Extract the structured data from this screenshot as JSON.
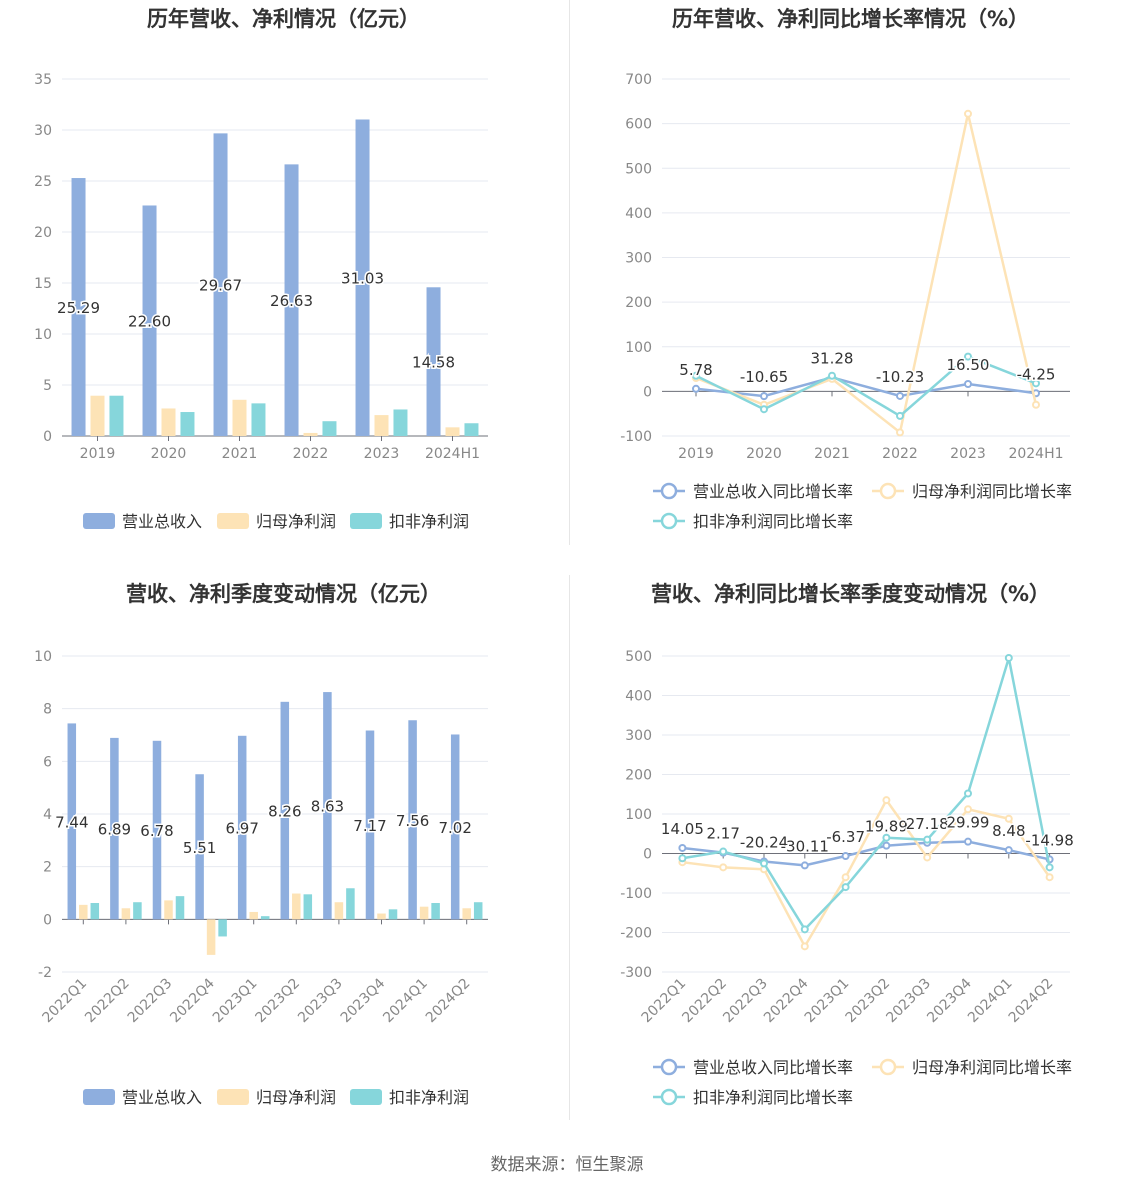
{
  "source_text": "数据来源：恒生聚源",
  "chart_data": [
    {
      "type": "bar",
      "title": "历年营收、净利情况（亿元）",
      "categories": [
        "2019",
        "2020",
        "2021",
        "2022",
        "2023",
        "2024H1"
      ],
      "ylim": [
        0,
        35
      ],
      "yticks": [
        0,
        5,
        10,
        15,
        20,
        25,
        30,
        35
      ],
      "legend_position": "bottom",
      "grid": true,
      "series": [
        {
          "name": "营业总收入",
          "color": "#8eaede",
          "values": [
            25.29,
            22.6,
            29.67,
            26.63,
            31.03,
            14.58
          ],
          "labels": [
            "25.29",
            "22.60",
            "29.67",
            "26.63",
            "31.03",
            "14.58"
          ]
        },
        {
          "name": "归母净利润",
          "color": "#fde3b6",
          "values": [
            3.95,
            2.7,
            3.55,
            0.3,
            2.05,
            0.85
          ]
        },
        {
          "name": "扣非净利润",
          "color": "#86d6db",
          "values": [
            3.95,
            2.35,
            3.2,
            1.45,
            2.6,
            1.25
          ]
        }
      ]
    },
    {
      "type": "line",
      "title": "历年营收、净利同比增长率情况（%）",
      "categories": [
        "2019",
        "2020",
        "2021",
        "2022",
        "2023",
        "2024H1"
      ],
      "ylim": [
        -100,
        700
      ],
      "yticks": [
        -100,
        0,
        100,
        200,
        300,
        400,
        500,
        600,
        700
      ],
      "legend_position": "bottom",
      "grid": true,
      "series": [
        {
          "name": "营业总收入同比增长率",
          "color": "#8eaede",
          "values": [
            5.78,
            -10.65,
            31.28,
            -10.23,
            16.5,
            -4.25
          ],
          "labels": [
            "5.78",
            "-10.65",
            "31.28",
            "-10.23",
            "16.50",
            "-4.25"
          ]
        },
        {
          "name": "归母净利润同比增长率",
          "color": "#fde3b6",
          "values": [
            30,
            -30,
            28,
            -92,
            622,
            -30
          ]
        },
        {
          "name": "扣非净利润同比增长率",
          "color": "#86d6db",
          "values": [
            35,
            -40,
            35,
            -55,
            78,
            18
          ]
        }
      ]
    },
    {
      "type": "bar",
      "title": "营收、净利季度变动情况（亿元）",
      "categories": [
        "2022Q1",
        "2022Q2",
        "2022Q3",
        "2022Q4",
        "2023Q1",
        "2023Q2",
        "2023Q3",
        "2023Q4",
        "2024Q1",
        "2024Q2"
      ],
      "ylim": [
        -2,
        10
      ],
      "yticks": [
        -2,
        0,
        2,
        4,
        6,
        8,
        10
      ],
      "legend_position": "bottom",
      "grid": true,
      "series": [
        {
          "name": "营业总收入",
          "color": "#8eaede",
          "values": [
            7.44,
            6.89,
            6.78,
            5.51,
            6.97,
            8.26,
            8.63,
            7.17,
            7.56,
            7.02
          ],
          "labels": [
            "7.44",
            "6.89",
            "6.78",
            "5.51",
            "6.97",
            "8.26",
            "8.63",
            "7.17",
            "7.56",
            "7.02"
          ]
        },
        {
          "name": "归母净利润",
          "color": "#fde3b6",
          "values": [
            0.55,
            0.42,
            0.72,
            -1.35,
            0.28,
            0.98,
            0.65,
            0.22,
            0.48,
            0.42
          ]
        },
        {
          "name": "扣非净利润",
          "color": "#86d6db",
          "values": [
            0.62,
            0.65,
            0.88,
            -0.65,
            0.12,
            0.95,
            1.18,
            0.38,
            0.62,
            0.65
          ]
        }
      ]
    },
    {
      "type": "line",
      "title": "营收、净利同比增长率季度变动情况（%）",
      "categories": [
        "2022Q1",
        "2022Q2",
        "2022Q3",
        "2022Q4",
        "2023Q1",
        "2023Q2",
        "2023Q3",
        "2023Q4",
        "2024Q1",
        "2024Q2"
      ],
      "ylim": [
        -300,
        500
      ],
      "yticks": [
        -300,
        -200,
        -100,
        0,
        100,
        200,
        300,
        400,
        500
      ],
      "legend_position": "bottom",
      "grid": true,
      "series": [
        {
          "name": "营业总收入同比增长率",
          "color": "#8eaede",
          "values": [
            14.05,
            2.17,
            -20.24,
            -30.11,
            -6.37,
            19.89,
            27.18,
            29.99,
            8.48,
            -14.98
          ],
          "labels": [
            "14.05",
            "2.17",
            "-20.24",
            "-30.11",
            "-6.37",
            "19.89",
            "27.18",
            "29.99",
            "8.48",
            "-14.98"
          ]
        },
        {
          "name": "归母净利润同比增长率",
          "color": "#fde3b6",
          "values": [
            -22,
            -35,
            -40,
            -235,
            -60,
            135,
            -10,
            112,
            88,
            -60
          ]
        },
        {
          "name": "扣非净利润同比增长率",
          "color": "#86d6db",
          "values": [
            -12,
            5,
            -25,
            -192,
            -85,
            40,
            35,
            152,
            495,
            -35
          ]
        }
      ]
    }
  ]
}
